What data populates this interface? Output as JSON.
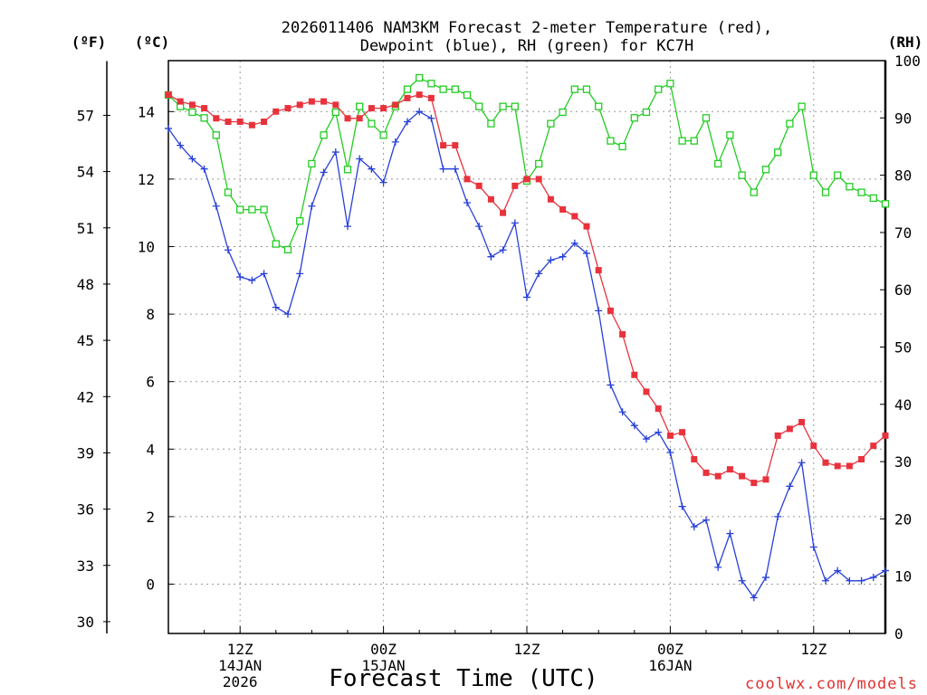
{
  "colors": {
    "temperature": "#e8323c",
    "dewpoint": "#2840d8",
    "rh": "#22cc22",
    "grid": "#9a9a9a",
    "credit": "#e03030"
  },
  "chart_data": {
    "type": "line",
    "title_line1": "2026011406 NAM3KM Forecast 2-meter Temperature (red),",
    "title_line2": "Dewpoint (blue), RH (green) for KC7H",
    "xlabel": "Forecast Time (UTC)",
    "credit": "coolwx.com/models",
    "x_unit": "hours since 2026-01-14 06Z",
    "xlim": [
      6,
      66
    ],
    "x_ticks": [
      {
        "x": 12,
        "label": "12Z",
        "date": "14JAN",
        "year": "2026"
      },
      {
        "x": 24,
        "label": "00Z",
        "date": "15JAN",
        "year": ""
      },
      {
        "x": 36,
        "label": "12Z",
        "date": "",
        "year": ""
      },
      {
        "x": 48,
        "label": "00Z",
        "date": "16JAN",
        "year": ""
      },
      {
        "x": 60,
        "label": "12Z",
        "date": "",
        "year": ""
      }
    ],
    "left_c_axis": {
      "unit": "(ºC)",
      "ylim": [
        -1.5,
        15.5
      ],
      "ticks": [
        0,
        2,
        4,
        6,
        8,
        10,
        12,
        14
      ]
    },
    "left_f_axis": {
      "unit": "(ºF)",
      "ticks": [
        30,
        33,
        36,
        39,
        42,
        45,
        48,
        51,
        54,
        57
      ]
    },
    "right_rh_axis": {
      "unit": "(RH)",
      "ylim": [
        0,
        100
      ],
      "ticks": [
        0,
        10,
        20,
        30,
        40,
        50,
        60,
        70,
        80,
        90,
        100
      ]
    },
    "series": [
      {
        "name": "Temperature (°C)",
        "axis": "c",
        "marker": "filled-square",
        "x": [
          6,
          7,
          8,
          9,
          10,
          11,
          12,
          13,
          14,
          15,
          16,
          17,
          18,
          19,
          20,
          21,
          22,
          23,
          24,
          25,
          26,
          27,
          28,
          29,
          30,
          31,
          32,
          33,
          34,
          35,
          36,
          37,
          38,
          39,
          40,
          41,
          42,
          43,
          44,
          45,
          46,
          47,
          48,
          49,
          50,
          51,
          52,
          53,
          54,
          55,
          56,
          57,
          58,
          59,
          60,
          61,
          62,
          63,
          64,
          65,
          66
        ],
        "values": [
          14.5,
          14.3,
          14.2,
          14.1,
          13.8,
          13.7,
          13.7,
          13.6,
          13.7,
          14.0,
          14.1,
          14.2,
          14.3,
          14.3,
          14.2,
          13.8,
          13.8,
          14.1,
          14.1,
          14.2,
          14.4,
          14.5,
          14.4,
          13.0,
          13.0,
          12.0,
          11.8,
          11.4,
          11.0,
          11.8,
          12.0,
          12.0,
          11.4,
          11.1,
          10.9,
          10.6,
          9.3,
          8.1,
          7.4,
          6.2,
          5.7,
          5.2,
          4.4,
          4.5,
          3.7,
          3.3,
          3.2,
          3.4,
          3.2,
          3.0,
          3.1,
          4.4,
          4.6,
          4.8,
          4.1,
          3.6,
          3.5,
          3.5,
          3.7,
          4.1,
          4.4
        ]
      },
      {
        "name": "Dewpoint (°C)",
        "axis": "c",
        "marker": "plus",
        "x": [
          6,
          7,
          8,
          9,
          10,
          11,
          12,
          13,
          14,
          15,
          16,
          17,
          18,
          19,
          20,
          21,
          22,
          23,
          24,
          25,
          26,
          27,
          28,
          29,
          30,
          31,
          32,
          33,
          34,
          35,
          36,
          37,
          38,
          39,
          40,
          41,
          42,
          43,
          44,
          45,
          46,
          47,
          48,
          49,
          50,
          51,
          52,
          53,
          54,
          55,
          56,
          57,
          58,
          59,
          60,
          61,
          62,
          63,
          64,
          65,
          66
        ],
        "values": [
          13.5,
          13.0,
          12.6,
          12.3,
          11.2,
          9.9,
          9.1,
          9.0,
          9.2,
          8.2,
          8.0,
          9.2,
          11.2,
          12.2,
          12.8,
          10.6,
          12.6,
          12.3,
          11.9,
          13.1,
          13.7,
          14.0,
          13.8,
          12.3,
          12.3,
          11.3,
          10.6,
          9.7,
          9.9,
          10.7,
          8.5,
          9.2,
          9.6,
          9.7,
          10.1,
          9.8,
          8.1,
          5.9,
          5.1,
          4.7,
          4.3,
          4.5,
          3.9,
          2.3,
          1.7,
          1.9,
          0.5,
          1.5,
          0.1,
          -0.4,
          0.2,
          2.0,
          2.9,
          3.6,
          1.1,
          0.1,
          0.4,
          0.1,
          0.1,
          0.2,
          0.4
        ]
      },
      {
        "name": "RH (%)",
        "axis": "rh",
        "marker": "open-square",
        "x": [
          6,
          7,
          8,
          9,
          10,
          11,
          12,
          13,
          14,
          15,
          16,
          17,
          18,
          19,
          20,
          21,
          22,
          23,
          24,
          25,
          26,
          27,
          28,
          29,
          30,
          31,
          32,
          33,
          34,
          35,
          36,
          37,
          38,
          39,
          40,
          41,
          42,
          43,
          44,
          45,
          46,
          47,
          48,
          49,
          50,
          51,
          52,
          53,
          54,
          55,
          56,
          57,
          58,
          59,
          60,
          61,
          62,
          63,
          64,
          65,
          66
        ],
        "values": [
          94,
          92,
          91,
          90,
          87,
          77,
          74,
          74,
          74,
          68,
          67,
          72,
          82,
          87,
          91,
          81,
          92,
          89,
          87,
          92,
          95,
          97,
          96,
          95,
          95,
          94,
          92,
          89,
          92,
          92,
          79,
          82,
          89,
          91,
          95,
          95,
          92,
          86,
          85,
          90,
          91,
          95,
          96,
          86,
          86,
          90,
          82,
          87,
          80,
          77,
          81,
          84,
          89,
          92,
          80,
          77,
          80,
          78,
          77,
          76,
          75
        ]
      }
    ]
  }
}
